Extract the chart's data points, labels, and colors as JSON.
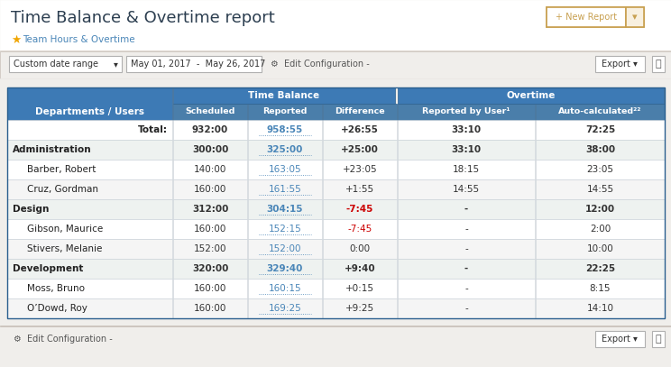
{
  "title": "Time Balance & Overtime report",
  "date_range": "May 01, 2017  -  May 26, 2017",
  "dropdown_label": "Custom date range",
  "edit_config_text": "Edit Configuration -",
  "export_text": "Export ▾",
  "new_report_btn": "+ New Report",
  "header_bg": "#3d7ab5",
  "header_text": "#ffffff",
  "subheader_bg": "#4a86b8",
  "title_color": "#2c3e50",
  "link_color": "#4a86b8",
  "neg_color": "#cc0000",
  "star_color": "#f0a500",
  "btn_border": "#c8a050",
  "btn_text": "#c8a050",
  "toolbar_bg": "#f0eeeb",
  "page_bg": "#f0eeeb",
  "white": "#ffffff",
  "border_light": "#c8d0d8",
  "border_dark": "#3a6f9f",
  "table_header1": "Time Balance",
  "table_header2": "Overtime",
  "rows": [
    {
      "label": "Total:",
      "indent": false,
      "bold": true,
      "align": "right",
      "scheduled": "932:00",
      "reported": "958:55",
      "difference": "+26:55",
      "reported_user": "33:10",
      "auto_calc": "72:25",
      "diff_neg": false
    },
    {
      "label": "Administration",
      "indent": false,
      "bold": true,
      "align": "left",
      "scheduled": "300:00",
      "reported": "325:00",
      "difference": "+25:00",
      "reported_user": "33:10",
      "auto_calc": "38:00",
      "diff_neg": false
    },
    {
      "label": "Barber, Robert",
      "indent": true,
      "bold": false,
      "align": "left",
      "scheduled": "140:00",
      "reported": "163:05",
      "difference": "+23:05",
      "reported_user": "18:15",
      "auto_calc": "23:05",
      "diff_neg": false
    },
    {
      "label": "Cruz, Gordman",
      "indent": true,
      "bold": false,
      "align": "left",
      "scheduled": "160:00",
      "reported": "161:55",
      "difference": "+1:55",
      "reported_user": "14:55",
      "auto_calc": "14:55",
      "diff_neg": false
    },
    {
      "label": "Design",
      "indent": false,
      "bold": true,
      "align": "left",
      "scheduled": "312:00",
      "reported": "304:15",
      "difference": "-7:45",
      "reported_user": "-",
      "auto_calc": "12:00",
      "diff_neg": true
    },
    {
      "label": "Gibson, Maurice",
      "indent": true,
      "bold": false,
      "align": "left",
      "scheduled": "160:00",
      "reported": "152:15",
      "difference": "-7:45",
      "reported_user": "-",
      "auto_calc": "2:00",
      "diff_neg": true
    },
    {
      "label": "Stivers, Melanie",
      "indent": true,
      "bold": false,
      "align": "left",
      "scheduled": "152:00",
      "reported": "152:00",
      "difference": "0:00",
      "reported_user": "-",
      "auto_calc": "10:00",
      "diff_neg": false
    },
    {
      "label": "Development",
      "indent": false,
      "bold": true,
      "align": "left",
      "scheduled": "320:00",
      "reported": "329:40",
      "difference": "+9:40",
      "reported_user": "-",
      "auto_calc": "22:25",
      "diff_neg": false
    },
    {
      "label": "Moss, Bruno",
      "indent": true,
      "bold": false,
      "align": "left",
      "scheduled": "160:00",
      "reported": "160:15",
      "difference": "+0:15",
      "reported_user": "-",
      "auto_calc": "8:15",
      "diff_neg": false
    },
    {
      "label": "O’Dowd, Roy",
      "indent": true,
      "bold": false,
      "align": "left",
      "scheduled": "160:00",
      "reported": "169:25",
      "difference": "+9:25",
      "reported_user": "-",
      "auto_calc": "14:10",
      "diff_neg": false
    }
  ]
}
